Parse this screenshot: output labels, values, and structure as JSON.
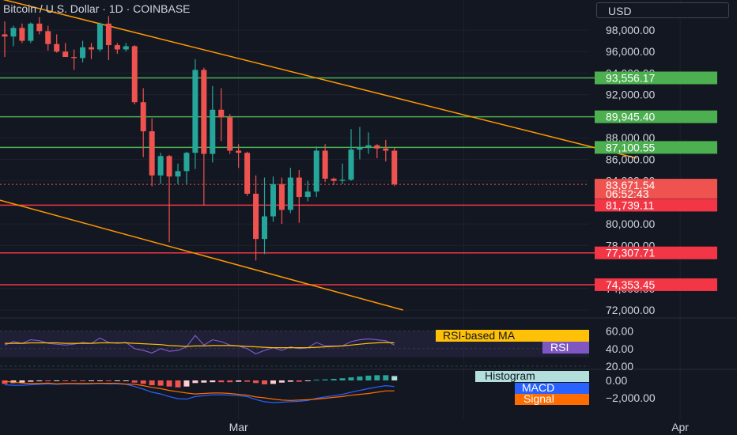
{
  "header": {
    "title": "Bitcoin / U.S. Dollar · 1D · COINBASE",
    "currency": "USD"
  },
  "colors": {
    "background": "#131722",
    "grid": "#1e222d",
    "up": "#26a69a",
    "down": "#ef5350",
    "support_line": "#f23645",
    "resistance_line": "#4caf50",
    "channel": "#ff9800",
    "rsi": "#7e57c2",
    "rsi_ma": "#ffc107",
    "macd": "#2962ff",
    "signal": "#ff6d00",
    "hist_up": "#26a69a",
    "hist_down": "#ef5350",
    "hist_neutral": "#b2dfdb"
  },
  "chart_data": [
    {
      "type": "candlestick",
      "ylim": [
        72000,
        99500
      ],
      "y_ticks": [
        72000,
        74000,
        78000,
        80000,
        84000,
        86000,
        88000,
        92000,
        94000,
        96000,
        98000
      ],
      "y_tick_labels": [
        "72,000.00",
        "74,000.00",
        "78,000.00",
        "80,000.00",
        "84,000.00",
        "86,000.00",
        "88,000.00",
        "92,000.00",
        "94,000.00",
        "96,000.00",
        "98,000.00"
      ],
      "x_labels": [
        {
          "label": "Mar",
          "index": 27
        },
        {
          "label": "Apr",
          "index": 78
        }
      ],
      "candles": [
        [
          97600,
          98800,
          95500,
          97400
        ],
        [
          97400,
          98400,
          96500,
          98200
        ],
        [
          98200,
          98600,
          96800,
          97000
        ],
        [
          97000,
          98700,
          96800,
          98600
        ],
        [
          98600,
          99200,
          97600,
          97900
        ],
        [
          97900,
          98400,
          96100,
          96700
        ],
        [
          96700,
          97600,
          95900,
          96000
        ],
        [
          96000,
          96800,
          95500,
          95500
        ],
        [
          95500,
          96200,
          94300,
          95400
        ],
        [
          95400,
          97000,
          95000,
          96400
        ],
        [
          96400,
          96800,
          95300,
          96200
        ],
        [
          96200,
          98700,
          96000,
          98600
        ],
        [
          98600,
          99300,
          95200,
          96600
        ],
        [
          96600,
          96800,
          95800,
          96200
        ],
        [
          96200,
          96800,
          96000,
          96500
        ],
        [
          96500,
          96600,
          91100,
          91300
        ],
        [
          91300,
          92600,
          86200,
          88600
        ],
        [
          88600,
          89800,
          83500,
          84500
        ],
        [
          84500,
          86600,
          83700,
          86300
        ],
        [
          86300,
          86400,
          78300,
          84400
        ],
        [
          84400,
          85600,
          83700,
          84900
        ],
        [
          84900,
          86700,
          83700,
          86600
        ],
        [
          86600,
          95300,
          85100,
          94300
        ],
        [
          94300,
          94500,
          81700,
          86500
        ],
        [
          86500,
          92800,
          85700,
          90600
        ],
        [
          90600,
          92600,
          87700,
          89900
        ],
        [
          89900,
          90200,
          86500,
          86800
        ],
        [
          86800,
          87400,
          85200,
          86600
        ],
        [
          86600,
          86700,
          82600,
          82800
        ],
        [
          82800,
          84500,
          76600,
          78600
        ],
        [
          78600,
          84300,
          77200,
          80700
        ],
        [
          80700,
          84400,
          80200,
          83700
        ],
        [
          83700,
          84300,
          80000,
          81300
        ],
        [
          81300,
          85200,
          81000,
          84300
        ],
        [
          84300,
          85000,
          80100,
          82500
        ],
        [
          82500,
          84000,
          82100,
          83000
        ],
        [
          83000,
          87200,
          82500,
          86800
        ],
        [
          86800,
          87400,
          83900,
          84200
        ],
        [
          84200,
          84300,
          83600,
          84000
        ],
        [
          84000,
          85600,
          83700,
          84100
        ],
        [
          84100,
          88800,
          84000,
          86900
        ],
        [
          86900,
          89000,
          86000,
          87100
        ],
        [
          87100,
          88500,
          86500,
          87300
        ],
        [
          87300,
          87400,
          86100,
          87000
        ],
        [
          87000,
          87800,
          85800,
          86800
        ],
        [
          86800,
          87100,
          83500,
          83672
        ]
      ],
      "horizontal_levels": [
        {
          "value": 93556.17,
          "label": "93,556.17",
          "kind": "resistance"
        },
        {
          "value": 89945.4,
          "label": "89,945.40",
          "kind": "resistance"
        },
        {
          "value": 87100.55,
          "label": "87,100.55",
          "kind": "resistance"
        },
        {
          "value": 81739.11,
          "label": "81,739.11",
          "kind": "support"
        },
        {
          "value": 77307.71,
          "label": "77,307.71",
          "kind": "support"
        },
        {
          "value": 74353.45,
          "label": "74,353.45",
          "kind": "support"
        }
      ],
      "channel_lines": [
        {
          "from": [
            -1,
            101000
          ],
          "to": [
            73,
            86100
          ]
        },
        {
          "from": [
            -1,
            82300
          ],
          "to": [
            46,
            72000
          ]
        }
      ],
      "last_price": {
        "value": 83671.54,
        "price_label": "83,671.54",
        "countdown": "06:52:43"
      }
    },
    {
      "type": "line",
      "name": "RSI",
      "ylim": [
        20,
        68
      ],
      "y_ticks": [
        20,
        40,
        60
      ],
      "y_tick_labels": [
        "20.00",
        "40.00",
        "60.00"
      ],
      "bands": [
        30,
        70
      ],
      "series": [
        {
          "name": "RSI",
          "values": [
            44,
            48,
            46,
            50,
            49,
            46,
            45,
            44,
            45,
            47,
            46,
            52,
            47,
            46,
            47,
            40,
            38,
            35,
            40,
            37,
            38,
            42,
            55,
            44,
            50,
            48,
            44,
            43,
            40,
            34,
            38,
            41,
            38,
            42,
            40,
            41,
            47,
            43,
            43,
            43,
            48,
            50,
            51,
            50,
            49,
            44
          ]
        },
        {
          "name": "RSI-based MA",
          "values": [
            46,
            46,
            46,
            46.5,
            46.5,
            46.5,
            46.5,
            46,
            46,
            46,
            46,
            46.5,
            46.5,
            46.5,
            46.5,
            46,
            45.5,
            45,
            44.5,
            43.5,
            43,
            42.5,
            43,
            43,
            43.5,
            43.5,
            43.5,
            43,
            42.5,
            42,
            41.5,
            41,
            41,
            41,
            41,
            41,
            41.5,
            42,
            42.5,
            43,
            44,
            45,
            46,
            46.5,
            47,
            46.5
          ]
        }
      ],
      "legend": [
        "RSI-based MA",
        "RSI"
      ]
    },
    {
      "type": "bar+line",
      "name": "MACD",
      "ylim": [
        -3600,
        600
      ],
      "y_ticks": [
        0,
        -2000
      ],
      "y_tick_labels": [
        "0.00",
        "−2,000.00"
      ],
      "histogram": [
        -400,
        -300,
        -250,
        -150,
        -100,
        -100,
        -50,
        -50,
        -50,
        -80,
        -40,
        -20,
        -80,
        -60,
        -30,
        -250,
        -400,
        -550,
        -600,
        -700,
        -800,
        -700,
        -300,
        -250,
        -200,
        -200,
        -200,
        -150,
        -150,
        -300,
        -450,
        -400,
        -250,
        -150,
        -150,
        -80,
        80,
        120,
        180,
        250,
        350,
        450,
        550,
        600,
        600,
        500
      ],
      "series": [
        {
          "name": "MACD",
          "values": [
            -500,
            -550,
            -550,
            -500,
            -450,
            -400,
            -450,
            -400,
            -400,
            -420,
            -400,
            -350,
            -400,
            -400,
            -450,
            -700,
            -1000,
            -1350,
            -1550,
            -1850,
            -2100,
            -2150,
            -1850,
            -1750,
            -1650,
            -1650,
            -1700,
            -1750,
            -1850,
            -2200,
            -2450,
            -2550,
            -2500,
            -2450,
            -2400,
            -2300,
            -2050,
            -1900,
            -1750,
            -1600,
            -1350,
            -1150,
            -950,
            -750,
            -600,
            -700
          ]
        },
        {
          "name": "Signal",
          "values": [
            -100,
            -200,
            -300,
            -350,
            -350,
            -300,
            -400,
            -350,
            -350,
            -350,
            -350,
            -330,
            -330,
            -340,
            -420,
            -450,
            -600,
            -800,
            -950,
            -1150,
            -1300,
            -1450,
            -1550,
            -1500,
            -1450,
            -1450,
            -1500,
            -1600,
            -1700,
            -1900,
            -2000,
            -2150,
            -2250,
            -2300,
            -2250,
            -2220,
            -2150,
            -2050,
            -1950,
            -1850,
            -1700,
            -1600,
            -1500,
            -1350,
            -1200,
            -1200
          ]
        }
      ],
      "legend": [
        "Histogram",
        "MACD",
        "Signal"
      ]
    }
  ]
}
